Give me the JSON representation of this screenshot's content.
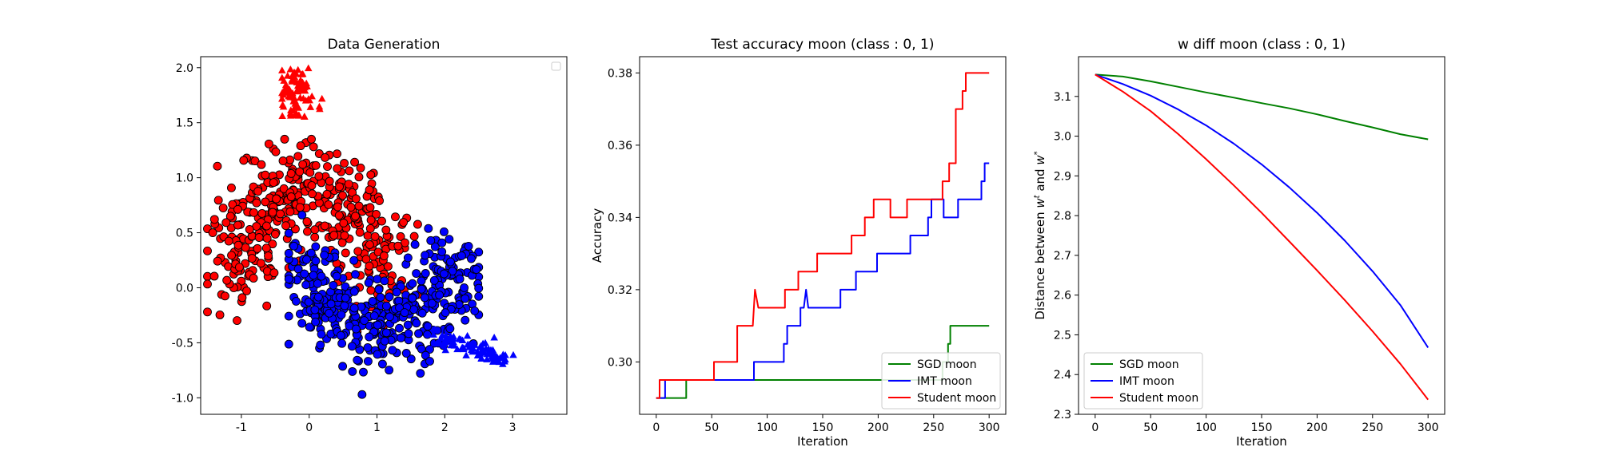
{
  "chart_data": [
    {
      "type": "scatter",
      "title": "Data Generation",
      "xlabel": "",
      "ylabel": "",
      "xlim": [
        -1.6,
        3.8
      ],
      "ylim": [
        -1.15,
        2.1
      ],
      "xticks": [
        -1,
        0,
        1,
        2,
        3
      ],
      "yticks": [
        -1.0,
        -0.5,
        0.0,
        0.5,
        1.0,
        1.5,
        2.0
      ],
      "legend": {
        "placement": "upper-right",
        "entries": []
      },
      "colors": {
        "class0": "#ff0000",
        "class1": "#0000ff",
        "edge": "#000000"
      },
      "series": [
        {
          "name": "",
          "marker": "circle",
          "color": "#ff0000",
          "center": [
            -0.1,
            0.62
          ],
          "spread": [
            0.55,
            0.33
          ],
          "count": 420
        },
        {
          "name": "",
          "marker": "circle",
          "color": "#0000ff",
          "center": [
            0.95,
            -0.12
          ],
          "spread": [
            0.6,
            0.32
          ],
          "count": 420
        },
        {
          "name": "",
          "marker": "triangle",
          "color": "#ff0000",
          "x_range": [
            -0.4,
            0.45
          ],
          "y_range": [
            1.5,
            2.0
          ],
          "count": 80
        },
        {
          "name": "",
          "marker": "triangle",
          "color": "#0000ff",
          "x_range": [
            1.8,
            3.55
          ],
          "y_range": [
            -0.72,
            -0.45
          ],
          "count": 80
        }
      ]
    },
    {
      "type": "line",
      "title": "Test accuracy moon (class : 0, 1)",
      "xlabel": "Iteration",
      "ylabel": "Accuracy",
      "xlim": [
        -15,
        315
      ],
      "ylim": [
        0.2855,
        0.3845
      ],
      "xticks": [
        0,
        50,
        100,
        150,
        200,
        250,
        300
      ],
      "yticks": [
        0.3,
        0.32,
        0.34,
        0.36,
        0.38
      ],
      "ytick_labels": [
        "0.30",
        "0.32",
        "0.34",
        "0.36",
        "0.38"
      ],
      "legend": {
        "placement": "lower-right"
      },
      "series": [
        {
          "name": "SGD moon",
          "color": "#008000",
          "points": [
            [
              0,
              0.29
            ],
            [
              27,
              0.29
            ],
            [
              27,
              0.295
            ],
            [
              258,
              0.295
            ],
            [
              258,
              0.3
            ],
            [
              263,
              0.3
            ],
            [
              263,
              0.305
            ],
            [
              265,
              0.305
            ],
            [
              265,
              0.31
            ],
            [
              300,
              0.31
            ]
          ]
        },
        {
          "name": "IMT moon",
          "color": "#0000ff",
          "points": [
            [
              0,
              0.29
            ],
            [
              8,
              0.29
            ],
            [
              8,
              0.295
            ],
            [
              88,
              0.295
            ],
            [
              88,
              0.3
            ],
            [
              115,
              0.3
            ],
            [
              115,
              0.305
            ],
            [
              118,
              0.305
            ],
            [
              118,
              0.31
            ],
            [
              130,
              0.31
            ],
            [
              130,
              0.315
            ],
            [
              133,
              0.315
            ],
            [
              135,
              0.32
            ],
            [
              137,
              0.315
            ],
            [
              166,
              0.315
            ],
            [
              166,
              0.32
            ],
            [
              180,
              0.32
            ],
            [
              180,
              0.325
            ],
            [
              199,
              0.325
            ],
            [
              199,
              0.33
            ],
            [
              229,
              0.33
            ],
            [
              229,
              0.335
            ],
            [
              245,
              0.335
            ],
            [
              245,
              0.34
            ],
            [
              248,
              0.34
            ],
            [
              248,
              0.345
            ],
            [
              259,
              0.345
            ],
            [
              259,
              0.34
            ],
            [
              272,
              0.34
            ],
            [
              272,
              0.345
            ],
            [
              293,
              0.345
            ],
            [
              293,
              0.35
            ],
            [
              296,
              0.35
            ],
            [
              296,
              0.355
            ],
            [
              300,
              0.355
            ]
          ]
        },
        {
          "name": "Student moon",
          "color": "#ff0000",
          "points": [
            [
              0,
              0.29
            ],
            [
              3,
              0.29
            ],
            [
              3,
              0.295
            ],
            [
              52,
              0.295
            ],
            [
              52,
              0.3
            ],
            [
              73,
              0.3
            ],
            [
              73,
              0.31
            ],
            [
              87,
              0.31
            ],
            [
              89,
              0.32
            ],
            [
              92,
              0.315
            ],
            [
              116,
              0.315
            ],
            [
              116,
              0.32
            ],
            [
              128,
              0.32
            ],
            [
              128,
              0.325
            ],
            [
              145,
              0.325
            ],
            [
              145,
              0.33
            ],
            [
              176,
              0.33
            ],
            [
              176,
              0.335
            ],
            [
              188,
              0.335
            ],
            [
              188,
              0.34
            ],
            [
              196,
              0.34
            ],
            [
              196,
              0.345
            ],
            [
              211,
              0.345
            ],
            [
              211,
              0.34
            ],
            [
              226,
              0.34
            ],
            [
              226,
              0.345
            ],
            [
              258,
              0.345
            ],
            [
              258,
              0.35
            ],
            [
              264,
              0.35
            ],
            [
              264,
              0.355
            ],
            [
              270,
              0.355
            ],
            [
              270,
              0.37
            ],
            [
              276,
              0.37
            ],
            [
              276,
              0.375
            ],
            [
              279,
              0.375
            ],
            [
              279,
              0.38
            ],
            [
              300,
              0.38
            ]
          ]
        }
      ]
    },
    {
      "type": "line",
      "title": "w diff moon (class : 0, 1)",
      "xlabel": "Iteration",
      "ylabel": "Distance between w^t and w^*",
      "ylabel_parts": {
        "before": "Distance between ",
        "w1": "w",
        "sup1": "t",
        "and": " and ",
        "w2": "w",
        "sup2": "*"
      },
      "xlim": [
        -15,
        315
      ],
      "ylim": [
        2.3,
        3.2
      ],
      "xticks": [
        0,
        50,
        100,
        150,
        200,
        250,
        300
      ],
      "yticks": [
        2.3,
        2.4,
        2.5,
        2.6,
        2.7,
        2.8,
        2.9,
        3.0,
        3.1
      ],
      "ytick_labels": [
        "2.3",
        "2.4",
        "2.5",
        "2.6",
        "2.7",
        "2.8",
        "2.9",
        "3.0",
        "3.1"
      ],
      "legend": {
        "placement": "lower-left"
      },
      "series": [
        {
          "name": "SGD moon",
          "color": "#008000",
          "points": [
            [
              0,
              3.155
            ],
            [
              25,
              3.15
            ],
            [
              50,
              3.138
            ],
            [
              75,
              3.124
            ],
            [
              100,
              3.11
            ],
            [
              125,
              3.097
            ],
            [
              150,
              3.083
            ],
            [
              175,
              3.07
            ],
            [
              200,
              3.055
            ],
            [
              225,
              3.038
            ],
            [
              250,
              3.022
            ],
            [
              275,
              3.005
            ],
            [
              300,
              2.992
            ]
          ]
        },
        {
          "name": "IMT moon",
          "color": "#0000ff",
          "points": [
            [
              0,
              3.155
            ],
            [
              25,
              3.131
            ],
            [
              50,
              3.102
            ],
            [
              75,
              3.067
            ],
            [
              100,
              3.027
            ],
            [
              125,
              2.981
            ],
            [
              150,
              2.929
            ],
            [
              175,
              2.871
            ],
            [
              200,
              2.807
            ],
            [
              225,
              2.737
            ],
            [
              250,
              2.66
            ],
            [
              275,
              2.575
            ],
            [
              300,
              2.468
            ]
          ]
        },
        {
          "name": "Student moon",
          "color": "#ff0000",
          "points": [
            [
              0,
              3.155
            ],
            [
              25,
              3.112
            ],
            [
              50,
              3.063
            ],
            [
              75,
              3.005
            ],
            [
              100,
              2.942
            ],
            [
              125,
              2.876
            ],
            [
              150,
              2.807
            ],
            [
              175,
              2.735
            ],
            [
              200,
              2.662
            ],
            [
              225,
              2.587
            ],
            [
              250,
              2.509
            ],
            [
              275,
              2.427
            ],
            [
              300,
              2.337
            ]
          ]
        }
      ]
    }
  ]
}
